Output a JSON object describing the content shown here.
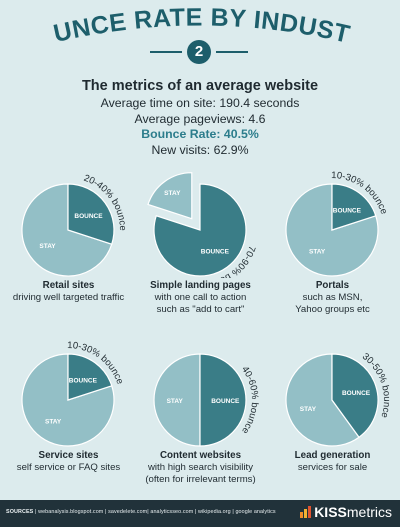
{
  "header": {
    "title": "BOUNCE RATE BY INDUSTRY",
    "badge": "2"
  },
  "metrics": {
    "title": "The metrics of an average website",
    "lines": [
      "Average time on site: 190.4 seconds",
      "Average pageviews: 4.6",
      "Bounce Rate: 40.5%",
      "New visits: 62.9%"
    ]
  },
  "colors": {
    "background": "#dcebed",
    "bounce": "#3a7d87",
    "stay": "#93bfc6",
    "dark": "#1d5e6b",
    "footer": "#21323a"
  },
  "slice_labels": {
    "bounce": "BOUNCE",
    "stay": "STAY"
  },
  "chart_data": [
    {
      "type": "pie",
      "range": "20-40% bounce",
      "bounce": 0.3,
      "title": "Retail sites",
      "lines": [
        "driving well targeted traffic"
      ]
    },
    {
      "type": "pie",
      "range": "70-90% bounce",
      "bounce": 0.8,
      "title": "Simple landing pages",
      "lines": [
        "with one call to action",
        "such as \"add to cart\""
      ]
    },
    {
      "type": "pie",
      "range": "10-30% bounce",
      "bounce": 0.2,
      "title": "Portals",
      "lines": [
        "such as MSN,",
        "Yahoo groups etc"
      ]
    },
    {
      "type": "pie",
      "range": "10-30% bounce",
      "bounce": 0.2,
      "title": "Service sites",
      "lines": [
        "self service or FAQ sites"
      ]
    },
    {
      "type": "pie",
      "range": "40-60% bounce",
      "bounce": 0.5,
      "title": "Content websites",
      "lines": [
        "with high search visibility",
        "(often for irrelevant terms)"
      ]
    },
    {
      "type": "pie",
      "range": "30-50% bounce",
      "bounce": 0.4,
      "title": "Lead generation",
      "lines": [
        "services for sale"
      ]
    }
  ],
  "footer": {
    "sources_label": "SOURCES",
    "sources": "webanalysis.blogspot.com | savedelete.com| analyticsseo.com | wikipedia.org | google analytics",
    "brand_prefix": "KISS",
    "brand_suffix": "metrics"
  }
}
